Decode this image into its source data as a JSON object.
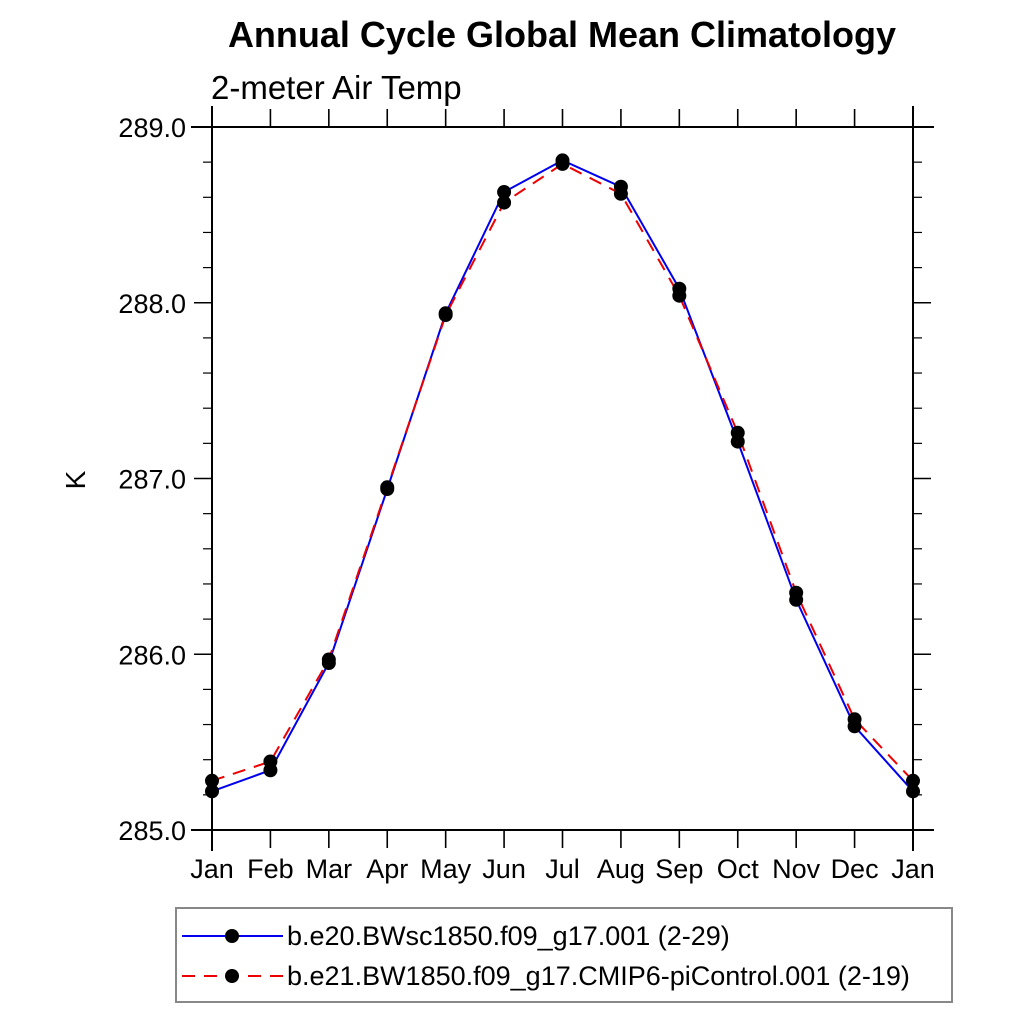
{
  "page": {
    "background_color": "#ffffff",
    "text_color": "#000000"
  },
  "chart_data": {
    "type": "line",
    "title": "Annual Cycle Global Mean Climatology",
    "subtitle": "2-meter Air Temp",
    "ylabel": "K",
    "xlabel": "",
    "categories": [
      "Jan",
      "Feb",
      "Mar",
      "Apr",
      "May",
      "Jun",
      "Jul",
      "Aug",
      "Sep",
      "Oct",
      "Nov",
      "Dec",
      "Jan"
    ],
    "series": [
      {
        "name": "b.e20.BWsc1850.f09_g17.001 (2-29)",
        "color": "#0000ee",
        "line_style": "solid",
        "marker": "filled-circle",
        "marker_color": "#000000",
        "values": [
          285.22,
          285.34,
          285.95,
          286.94,
          287.94,
          288.63,
          288.81,
          288.66,
          288.08,
          287.21,
          286.31,
          285.59,
          285.22
        ]
      },
      {
        "name": "b.e21.BW1850.f09_g17.CMIP6-piControl.001 (2-19)",
        "color": "#ee0000",
        "line_style": "dashed",
        "marker": "filled-circle",
        "marker_color": "#000000",
        "values": [
          285.28,
          285.39,
          285.97,
          286.95,
          287.93,
          288.57,
          288.79,
          288.62,
          288.04,
          287.26,
          286.35,
          285.63,
          285.28
        ]
      }
    ],
    "ylim": [
      285.0,
      289.0
    ],
    "y_major_step": 1.0,
    "y_minor_step": 0.2,
    "y_tick_labels": [
      "285.0",
      "286.0",
      "287.0",
      "288.0",
      "289.0"
    ],
    "grid": false,
    "legend_position": "bottom-left",
    "axis_color": "#000000",
    "legend_border_color": "#888888"
  }
}
